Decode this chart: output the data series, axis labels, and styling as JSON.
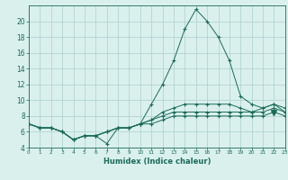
{
  "xlabel": "Humidex (Indice chaleur)",
  "ylabel": "",
  "xlim": [
    0,
    23
  ],
  "ylim": [
    4,
    22
  ],
  "yticks": [
    4,
    6,
    8,
    10,
    12,
    14,
    16,
    18,
    20
  ],
  "xtick_labels": [
    "0",
    "1",
    "2",
    "3",
    "4",
    "5",
    "6",
    "7",
    "8",
    "9",
    "10",
    "11",
    "12",
    "13",
    "14",
    "15",
    "16",
    "17",
    "18",
    "19",
    "20",
    "21",
    "22",
    "23"
  ],
  "background_color": "#daf0ed",
  "grid_color": "#aacfcc",
  "line_color": "#1a6b5a",
  "series": [
    [
      7.0,
      6.5,
      6.5,
      6.0,
      5.0,
      5.5,
      5.5,
      4.5,
      6.5,
      6.5,
      7.0,
      9.5,
      12.0,
      15.0,
      19.0,
      21.5,
      20.0,
      18.0,
      15.0,
      10.5,
      9.5,
      9.0,
      9.5,
      8.5
    ],
    [
      7.0,
      6.5,
      6.5,
      6.0,
      5.0,
      5.5,
      5.5,
      6.0,
      6.5,
      6.5,
      7.0,
      7.5,
      8.5,
      9.0,
      9.5,
      9.5,
      9.5,
      9.5,
      9.5,
      9.0,
      8.5,
      9.0,
      9.5,
      9.0
    ],
    [
      7.0,
      6.5,
      6.5,
      6.0,
      5.0,
      5.5,
      5.5,
      6.0,
      6.5,
      6.5,
      7.0,
      7.5,
      8.0,
      8.5,
      8.5,
      8.5,
      8.5,
      8.5,
      8.5,
      8.5,
      8.5,
      8.5,
      9.0,
      8.5
    ],
    [
      7.0,
      6.5,
      6.5,
      6.0,
      5.0,
      5.5,
      5.5,
      6.0,
      6.5,
      6.5,
      7.0,
      7.0,
      7.5,
      8.0,
      8.0,
      8.0,
      8.0,
      8.0,
      8.0,
      8.0,
      8.0,
      8.0,
      8.5,
      8.0
    ]
  ],
  "triangle_down_x": 22,
  "triangle_down_y": 8.5
}
